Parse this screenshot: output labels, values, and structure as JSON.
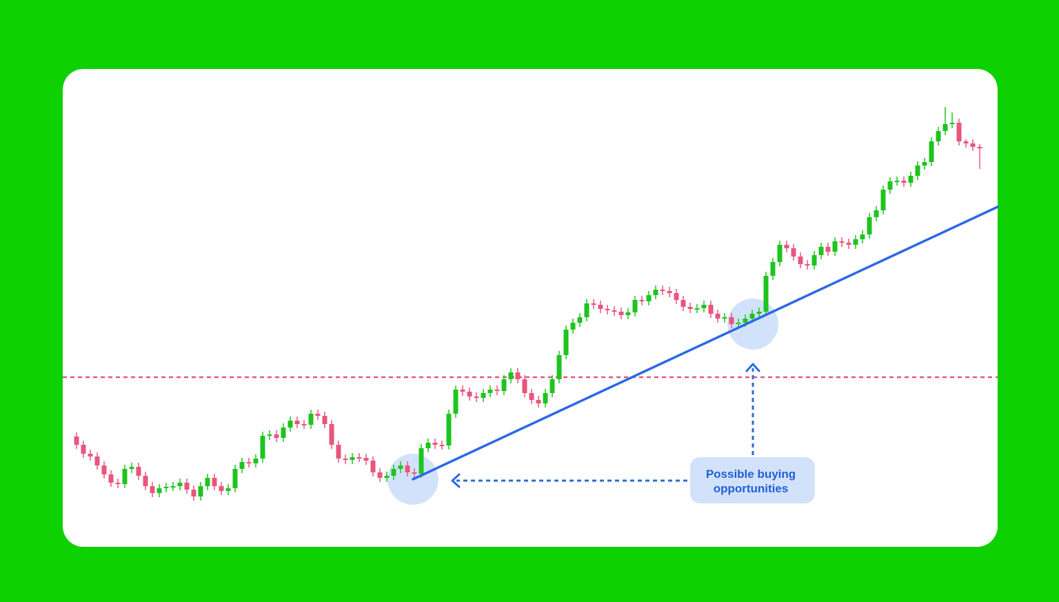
{
  "chart_data": {
    "type": "candlestick",
    "up_color": "#1ec41e",
    "down_color": "#e9557d",
    "xlim": [
      -2,
      133.6
    ],
    "ylim": [
      0,
      693
    ],
    "open": [
      160,
      148,
      135,
      131,
      118,
      105,
      93,
      91,
      113,
      116,
      103,
      88,
      78,
      85,
      87,
      88,
      93,
      83,
      73,
      88,
      100,
      88,
      81,
      85,
      113,
      123,
      121,
      128,
      161,
      163,
      158,
      173,
      183,
      178,
      177,
      193,
      190,
      178,
      148,
      128,
      126,
      130,
      129,
      125,
      108,
      100,
      103,
      113,
      118,
      108,
      106,
      143,
      151,
      148,
      147,
      193,
      228,
      225,
      218,
      216,
      223,
      228,
      226,
      243,
      253,
      243,
      223,
      213,
      208,
      223,
      243,
      278,
      315,
      325,
      333,
      353,
      351,
      345,
      343,
      341,
      336,
      340,
      358,
      356,
      365,
      373,
      371,
      368,
      358,
      348,
      345,
      346,
      351,
      338,
      331,
      333,
      323,
      325,
      331,
      338,
      341,
      393,
      413,
      438,
      433,
      421,
      410,
      408,
      423,
      435,
      428,
      443,
      441,
      438,
      446,
      453,
      478,
      488,
      518,
      530,
      531,
      528,
      538,
      553,
      558,
      588,
      603,
      613,
      615,
      588,
      585,
      580
    ],
    "high": [
      166,
      154,
      141,
      137,
      124,
      111,
      99,
      119,
      122,
      122,
      109,
      94,
      91,
      93,
      94,
      99,
      99,
      89,
      94,
      106,
      106,
      94,
      91,
      119,
      129,
      129,
      134,
      167,
      169,
      169,
      179,
      189,
      189,
      184,
      199,
      199,
      196,
      184,
      154,
      134,
      136,
      136,
      135,
      131,
      114,
      109,
      119,
      124,
      124,
      114,
      149,
      157,
      157,
      154,
      199,
      234,
      234,
      231,
      224,
      229,
      234,
      234,
      249,
      259,
      259,
      249,
      229,
      219,
      229,
      249,
      284,
      321,
      331,
      339,
      359,
      359,
      357,
      351,
      349,
      347,
      346,
      364,
      364,
      371,
      379,
      379,
      377,
      374,
      364,
      354,
      352,
      357,
      357,
      344,
      339,
      339,
      331,
      337,
      344,
      347,
      399,
      419,
      444,
      444,
      439,
      427,
      416,
      429,
      441,
      441,
      449,
      449,
      447,
      452,
      459,
      484,
      494,
      524,
      536,
      537,
      537,
      544,
      559,
      564,
      594,
      609,
      638,
      630,
      621,
      591,
      591,
      584
    ],
    "low": [
      142,
      129,
      125,
      112,
      99,
      87,
      85,
      85,
      107,
      97,
      82,
      72,
      72,
      79,
      81,
      82,
      77,
      67,
      67,
      82,
      82,
      75,
      75,
      79,
      107,
      115,
      115,
      122,
      155,
      152,
      152,
      167,
      172,
      171,
      171,
      184,
      172,
      142,
      122,
      120,
      120,
      123,
      119,
      102,
      94,
      94,
      97,
      107,
      102,
      100,
      100,
      137,
      142,
      141,
      141,
      187,
      219,
      212,
      210,
      210,
      217,
      220,
      220,
      237,
      237,
      217,
      207,
      202,
      202,
      217,
      237,
      272,
      309,
      319,
      327,
      345,
      339,
      337,
      335,
      330,
      330,
      334,
      350,
      350,
      359,
      365,
      362,
      352,
      342,
      339,
      339,
      340,
      332,
      325,
      325,
      317,
      317,
      319,
      325,
      332,
      335,
      387,
      407,
      427,
      415,
      404,
      402,
      402,
      417,
      422,
      422,
      435,
      432,
      432,
      440,
      447,
      472,
      482,
      512,
      524,
      522,
      522,
      532,
      547,
      552,
      582,
      597,
      607,
      582,
      579,
      574,
      548
    ],
    "close": [
      148,
      135,
      131,
      118,
      105,
      93,
      91,
      113,
      116,
      103,
      88,
      78,
      85,
      87,
      88,
      93,
      83,
      73,
      88,
      100,
      88,
      81,
      85,
      113,
      123,
      121,
      128,
      161,
      163,
      158,
      173,
      183,
      178,
      177,
      193,
      190,
      178,
      148,
      128,
      126,
      130,
      129,
      125,
      108,
      100,
      103,
      113,
      118,
      108,
      106,
      143,
      151,
      148,
      147,
      193,
      228,
      225,
      218,
      216,
      223,
      228,
      226,
      243,
      253,
      243,
      223,
      213,
      208,
      223,
      243,
      278,
      315,
      325,
      333,
      353,
      351,
      345,
      343,
      341,
      336,
      340,
      358,
      356,
      365,
      373,
      371,
      368,
      358,
      348,
      345,
      346,
      351,
      338,
      331,
      333,
      323,
      325,
      331,
      338,
      341,
      393,
      413,
      438,
      433,
      421,
      410,
      408,
      423,
      435,
      428,
      443,
      441,
      438,
      446,
      453,
      478,
      488,
      518,
      530,
      531,
      528,
      538,
      553,
      558,
      588,
      603,
      613,
      615,
      588,
      585,
      580,
      578
    ],
    "resistance": {
      "value": 246,
      "color": "#e9557d"
    },
    "trendline": {
      "x": [
        48.8,
        133.6
      ],
      "values": [
        98,
        493
      ],
      "color": "#2b68e6"
    },
    "highlights": {
      "x": [
        48.8,
        98.1
      ],
      "values": [
        98,
        323
      ]
    },
    "annotation": "Possible buying opportunities"
  }
}
